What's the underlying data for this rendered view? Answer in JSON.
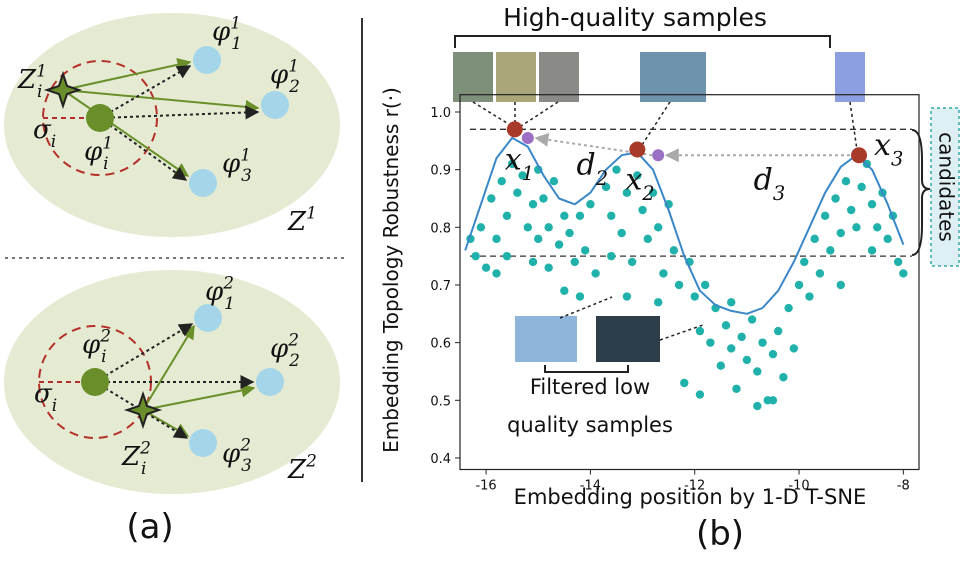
{
  "diagram": {
    "top": {
      "labels": [
        {
          "base": "Z",
          "sub": "i",
          "sup": "1"
        },
        {
          "base": "φ",
          "sub": "1",
          "sup": "1"
        },
        {
          "base": "φ",
          "sub": "2",
          "sup": "1"
        },
        {
          "base": "φ",
          "sub": "3",
          "sup": "1"
        },
        {
          "base": "φ",
          "sub": "i",
          "sup": "1"
        },
        {
          "base": "σ",
          "sub": "i"
        },
        {
          "base": "Z",
          "sup": "1"
        }
      ]
    },
    "bottom": {
      "labels": [
        {
          "base": "Z",
          "sub": "i",
          "sup": "2"
        },
        {
          "base": "φ",
          "sub": "1",
          "sup": "2"
        },
        {
          "base": "φ",
          "sub": "2",
          "sup": "2"
        },
        {
          "base": "φ",
          "sub": "3",
          "sup": "2"
        },
        {
          "base": "φ",
          "sub": "i",
          "sup": "2"
        },
        {
          "base": "σ",
          "sub": "i"
        },
        {
          "base": "Z",
          "sup": "2"
        }
      ]
    },
    "caption": "(a)"
  },
  "chart_data": {
    "type": "scatter",
    "caption": "(b)",
    "title": "High-quality samples",
    "x_label": "Embedding position by 1-D T-SNE",
    "y_label": "Embedding Topology Robustness r(·)",
    "xlim": [
      -16.5,
      -7.7
    ],
    "ylim": [
      0.38,
      1.03
    ],
    "xticks": [
      -16,
      -14,
      -12,
      -10,
      -8
    ],
    "yticks": [
      0.4,
      0.5,
      0.6,
      0.7,
      0.8,
      0.9,
      {
        "value": 1,
        "label": "1.0"
      }
    ],
    "scatter": {
      "color": "#20b2aa",
      "x": [
        -16.3,
        -16.2,
        -16.1,
        -16.0,
        -15.9,
        -15.8,
        -15.7,
        -15.6,
        -15.5,
        -15.4,
        -15.3,
        -15.2,
        -15.1,
        -15.0,
        -15.8,
        -15.6,
        -15.1,
        -15.0,
        -14.9,
        -14.8,
        -14.7,
        -14.6,
        -14.5,
        -14.4,
        -14.3,
        -14.2,
        -14.1,
        -14.0,
        -13.9,
        -14.2,
        -14.5,
        -14.8,
        -13.7,
        -13.6,
        -13.5,
        -13.4,
        -13.3,
        -13.2,
        -13.1,
        -13.0,
        -12.9,
        -12.8,
        -12.7,
        -12.6,
        -12.5,
        -12.4,
        -13.6,
        -12.3,
        -13.3,
        -12.7,
        -12.1,
        -12.0,
        -11.9,
        -11.8,
        -11.7,
        -11.6,
        -11.5,
        -11.4,
        -11.3,
        -11.2,
        -11.1,
        -11.0,
        -10.9,
        -10.8,
        -10.7,
        -10.6,
        -10.5,
        -10.4,
        -10.3,
        -10.2,
        -10.1,
        -10.0,
        -11.9,
        -10.8,
        -10.5,
        -11.3,
        -12.2,
        -9.9,
        -9.8,
        -9.7,
        -9.6,
        -9.5,
        -9.4,
        -9.3,
        -9.2,
        -9.1,
        -9.0,
        -8.9,
        -8.8,
        -8.7,
        -8.6,
        -8.5,
        -8.4,
        -8.3,
        -8.2,
        -8.1,
        -8.0,
        -9.2,
        -8.6
      ],
      "values": [
        0.78,
        0.75,
        0.8,
        0.73,
        0.85,
        0.78,
        0.88,
        0.82,
        0.91,
        0.86,
        0.89,
        0.8,
        0.84,
        0.9,
        0.72,
        0.75,
        0.74,
        0.78,
        0.85,
        0.8,
        0.88,
        0.77,
        0.82,
        0.79,
        0.74,
        0.82,
        0.76,
        0.84,
        0.72,
        0.68,
        0.69,
        0.73,
        0.87,
        0.82,
        0.9,
        0.79,
        0.86,
        0.74,
        0.89,
        0.83,
        0.78,
        0.86,
        0.8,
        0.72,
        0.84,
        0.76,
        0.75,
        0.7,
        0.68,
        0.67,
        0.74,
        0.68,
        0.62,
        0.7,
        0.6,
        0.66,
        0.56,
        0.63,
        0.59,
        0.52,
        0.61,
        0.57,
        0.64,
        0.55,
        0.6,
        0.5,
        0.58,
        0.62,
        0.54,
        0.66,
        0.59,
        0.7,
        0.51,
        0.49,
        0.5,
        0.67,
        0.53,
        0.74,
        0.68,
        0.78,
        0.72,
        0.82,
        0.76,
        0.85,
        0.79,
        0.88,
        0.83,
        0.8,
        0.87,
        0.91,
        0.84,
        0.8,
        0.86,
        0.78,
        0.82,
        0.74,
        0.72,
        0.7,
        0.76
      ]
    },
    "curve": {
      "color": "#3a87c8",
      "x": [
        -16.4,
        -16.1,
        -15.8,
        -15.5,
        -15.2,
        -14.9,
        -14.6,
        -14.3,
        -14.0,
        -13.7,
        -13.4,
        -13.1,
        -12.8,
        -12.5,
        -12.2,
        -11.9,
        -11.6,
        -11.3,
        -11.0,
        -10.7,
        -10.4,
        -10.1,
        -9.8,
        -9.5,
        -9.2,
        -8.9,
        -8.6,
        -8.3,
        -8.0
      ],
      "values": [
        0.76,
        0.84,
        0.92,
        0.955,
        0.94,
        0.89,
        0.85,
        0.84,
        0.86,
        0.9,
        0.925,
        0.93,
        0.9,
        0.83,
        0.75,
        0.69,
        0.665,
        0.655,
        0.65,
        0.66,
        0.69,
        0.74,
        0.8,
        0.86,
        0.905,
        0.925,
        0.9,
        0.84,
        0.77
      ]
    },
    "selected": {
      "color": "#a83a2a",
      "x": [
        -15.45,
        -13.1,
        -8.85
      ],
      "values": [
        0.97,
        0.935,
        0.925
      ],
      "labels": [
        {
          "base": "x",
          "sub": "1"
        },
        {
          "base": "x",
          "sub": "2"
        },
        {
          "base": "x",
          "sub": "3"
        }
      ]
    },
    "nearest": {
      "color": "#9b6fc4",
      "x": [
        -15.2,
        -12.7
      ],
      "values": [
        0.955,
        0.925
      ]
    },
    "distance_labels": [
      {
        "base": "d",
        "sub": "2"
      },
      {
        "base": "d",
        "sub": "3"
      }
    ],
    "reference_lines": [
      0.97,
      0.75
    ],
    "candidates_label": "candidates",
    "filtered_label": [
      "Filtered low",
      "quality samples"
    ]
  }
}
